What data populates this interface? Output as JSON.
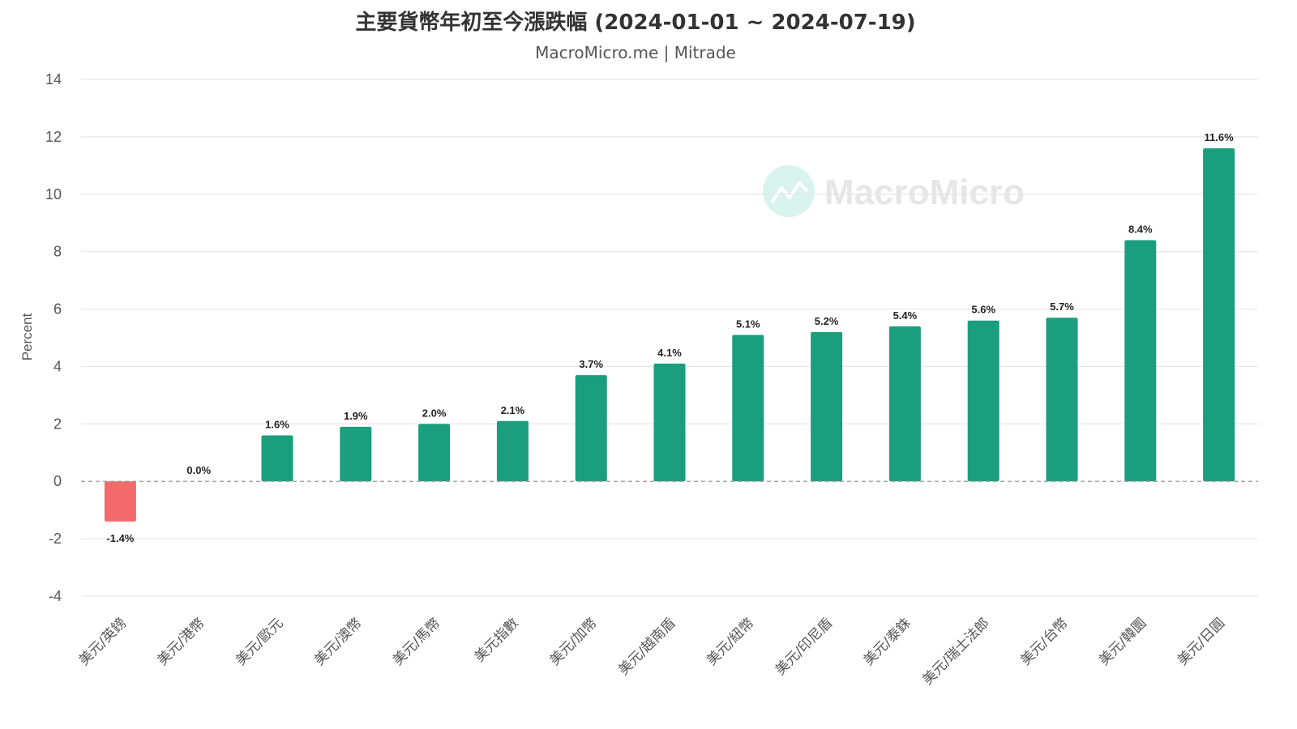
{
  "colors": {
    "positive": "#1a9e7d",
    "negative": "#f56b6b",
    "grid": "#e6e6e6",
    "zero_line": "#999999",
    "watermark_circle": "#d9f3ee"
  },
  "watermark": {
    "text": "MacroMicro",
    "icon": "macromicro-logo-icon"
  },
  "chart_data": {
    "type": "bar",
    "title": "主要貨幣年初至今漲跌幅 (2024-01-01 ~ 2024-07-19)",
    "subtitle": "MacroMicro.me | Mitrade",
    "xlabel": "",
    "ylabel": "Percent",
    "ylim": [
      -4,
      14
    ],
    "yticks": [
      "14",
      "12",
      "10",
      "8",
      "6",
      "4",
      "2",
      "0",
      "-2",
      "-4"
    ],
    "grid": true,
    "legend": "none",
    "categories": [
      "美元/英鎊",
      "美元/港幣",
      "美元/歐元",
      "美元/澳幣",
      "美元/馬幣",
      "美元指數",
      "美元/加幣",
      "美元/越南盾",
      "美元/紐幣",
      "美元/印尼盾",
      "美元/泰銖",
      "美元/瑞士法郎",
      "美元/台幣",
      "美元/韓圜",
      "美元/日圓"
    ],
    "values": [
      -1.4,
      0.0,
      1.6,
      1.9,
      2.0,
      2.1,
      3.7,
      4.1,
      5.1,
      5.2,
      5.4,
      5.6,
      5.7,
      8.4,
      11.6
    ],
    "data_labels": [
      "-1.4%",
      "0.0%",
      "1.6%",
      "1.9%",
      "2.0%",
      "2.1%",
      "3.7%",
      "4.1%",
      "5.1%",
      "5.2%",
      "5.4%",
      "5.6%",
      "5.7%",
      "8.4%",
      "11.6%"
    ]
  }
}
